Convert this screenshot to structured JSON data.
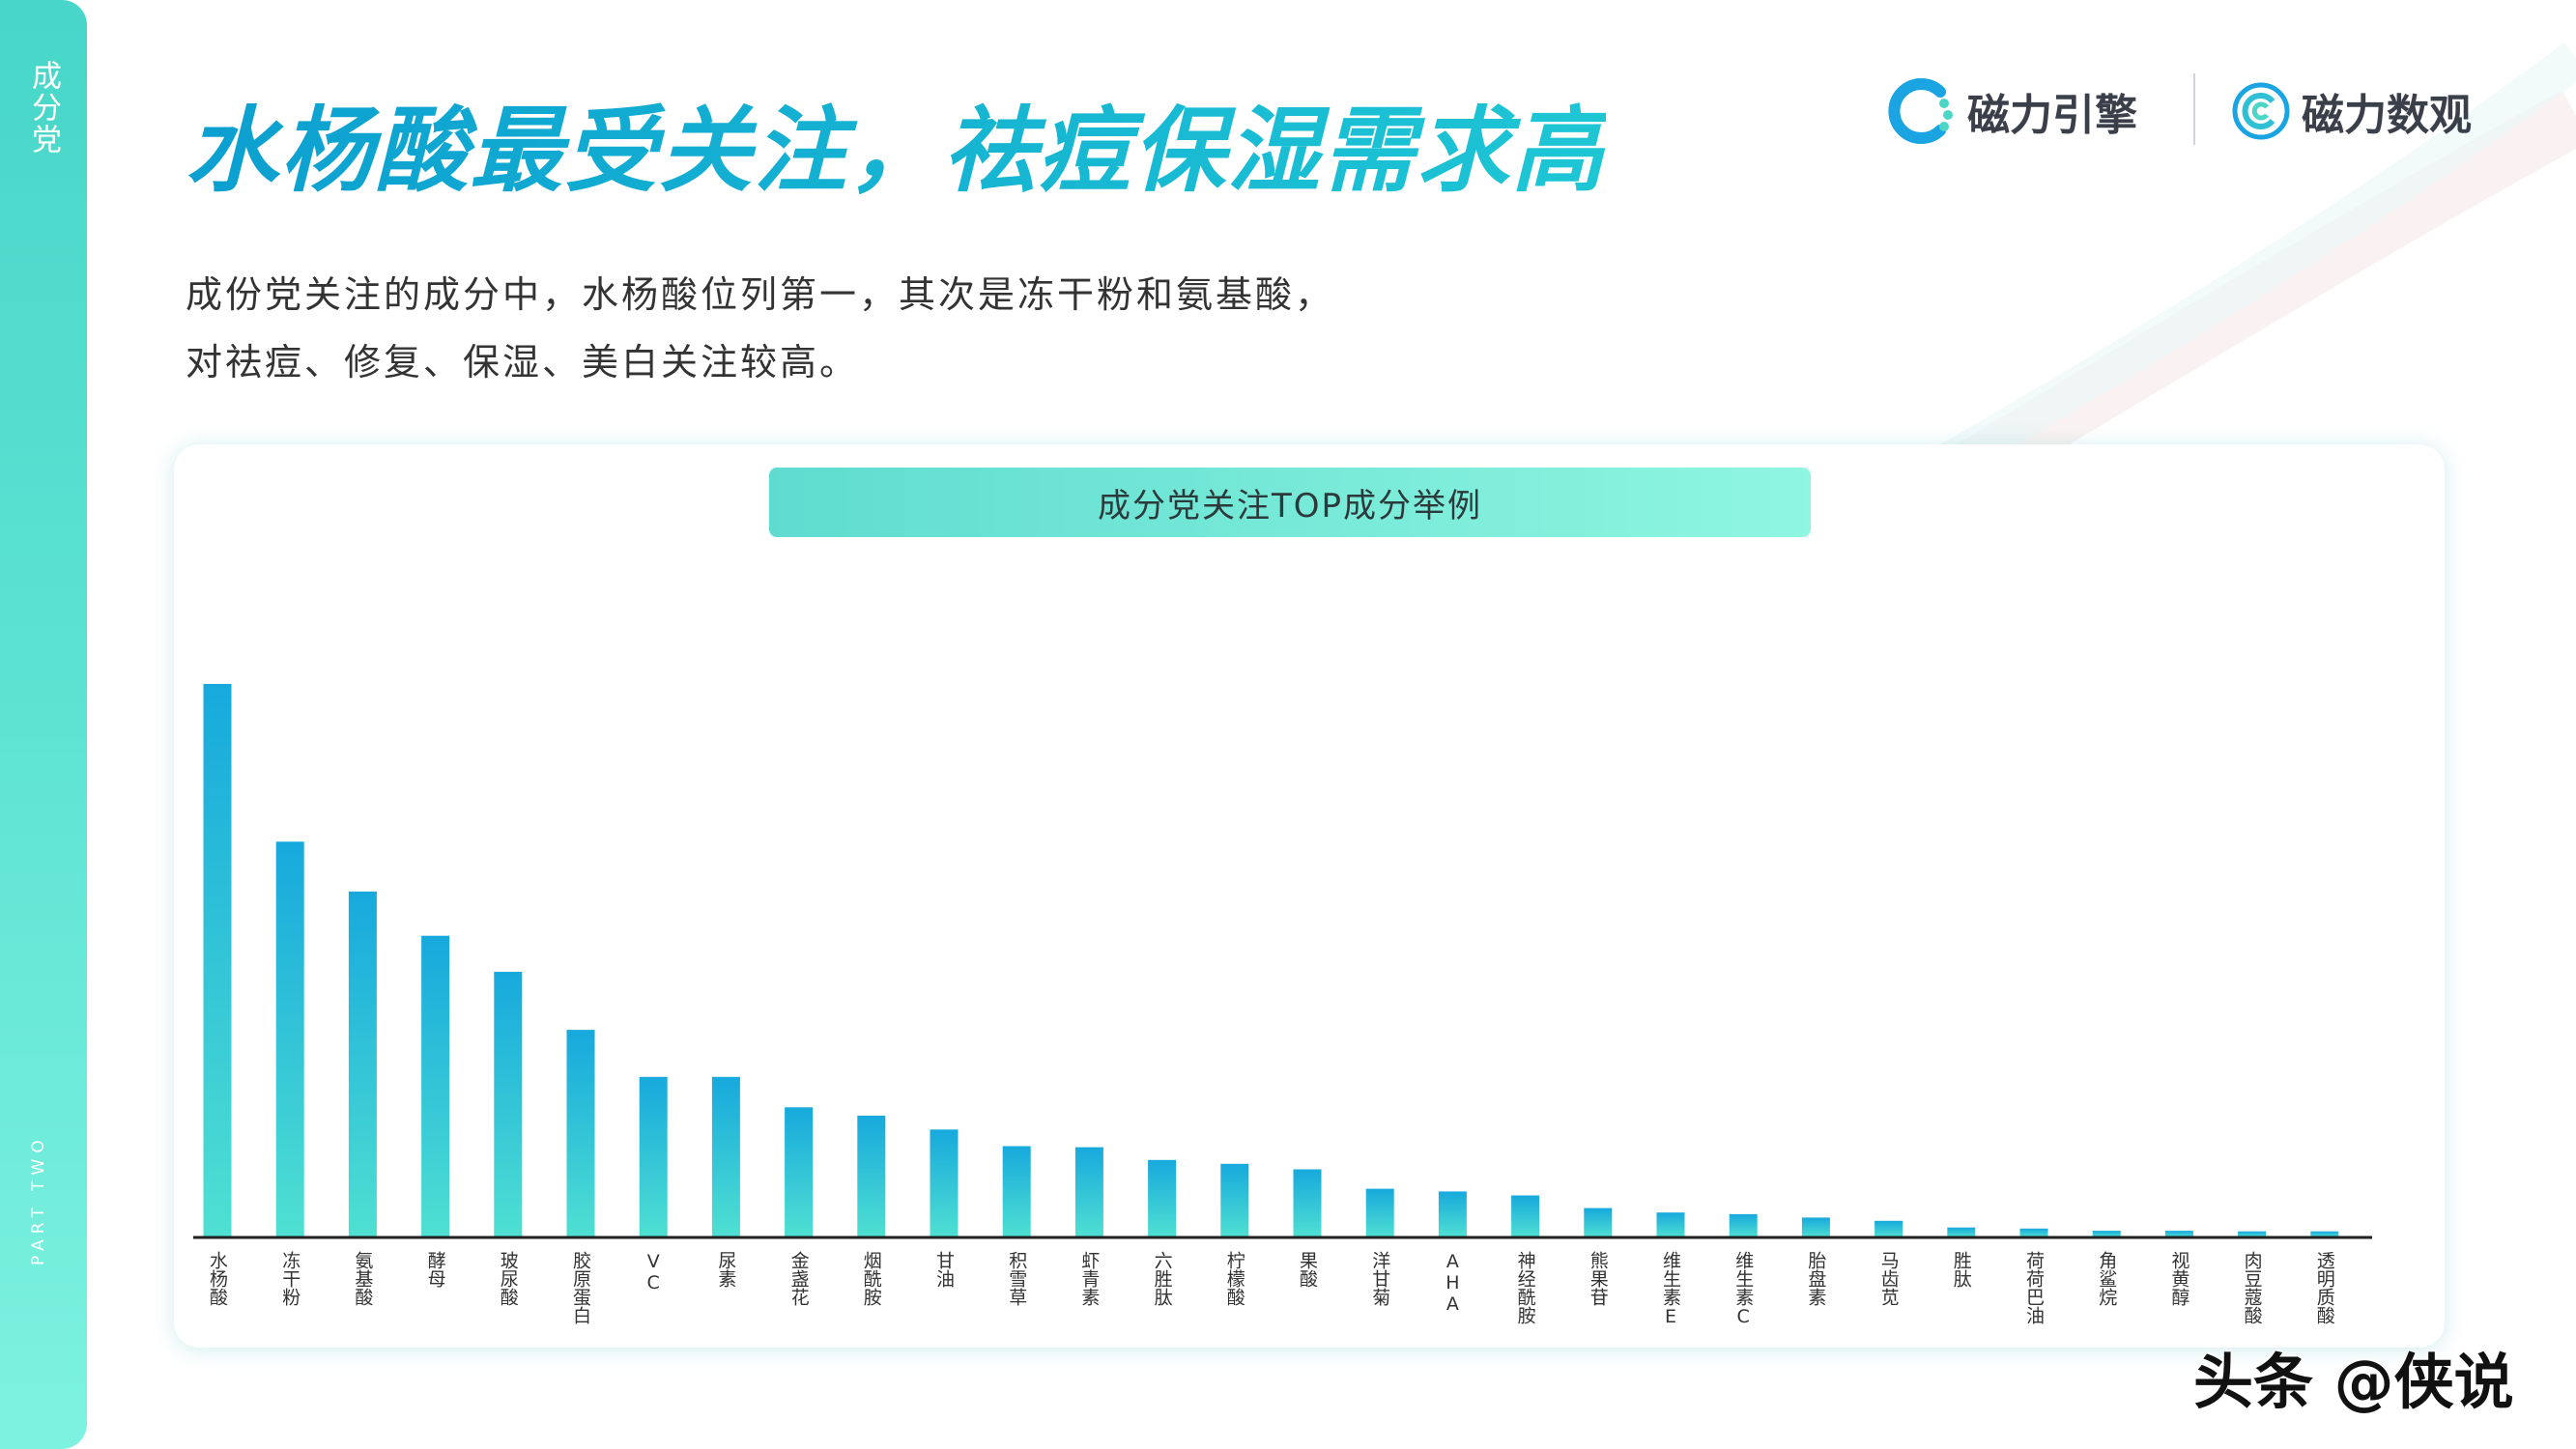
{
  "sidebar": {
    "section": "成分党",
    "part": "PART TWO"
  },
  "header": {
    "title": "水杨酸最受关注，祛痘保湿需求高",
    "logo1": "磁力引擎",
    "logo2": "磁力数观"
  },
  "subtitle": {
    "line1": "成份党关注的成分中，水杨酸位列第一，其次是冻干粉和氨基酸，",
    "line2": "对祛痘、修复、保湿、美白关注较高。"
  },
  "watermark": "头条 @侠说",
  "colors": {
    "accent": "#17b8cc",
    "bar_top": "#17a9dc",
    "bar_bottom": "#4fe0d2",
    "axis": "#222222"
  },
  "chart_data": {
    "type": "bar",
    "title": "成分党关注TOP成分举例",
    "xlabel": "",
    "ylabel": "",
    "categories": [
      "水杨酸",
      "冻干粉",
      "氨基酸",
      "酵母",
      "玻尿酸",
      "胶原蛋白",
      "VC",
      "尿素",
      "金盏花",
      "烟酰胺",
      "甘油",
      "积雪草",
      "虾青素",
      "六胜肽",
      "柠檬酸",
      "果酸",
      "洋甘菊",
      "AHA",
      "神经酰胺",
      "熊果苷",
      "维生素E",
      "维生素C",
      "胎盘素",
      "马齿苋",
      "胜肽",
      "荷荷巴油",
      "角鲨烷",
      "视黄醇",
      "肉豆蔻酸",
      "透明质酸"
    ],
    "values": [
      100,
      71.5,
      62.5,
      54.5,
      48,
      37.5,
      29,
      29,
      23.5,
      22,
      19.5,
      16.5,
      16.3,
      14,
      13.3,
      12.3,
      8.8,
      8.3,
      7.6,
      5.3,
      4.5,
      4.2,
      3.6,
      3,
      1.8,
      1.6,
      1.2,
      1.2,
      1.1,
      1.1
    ],
    "ylim": [
      0,
      100
    ],
    "grid": false,
    "legend": "none"
  }
}
